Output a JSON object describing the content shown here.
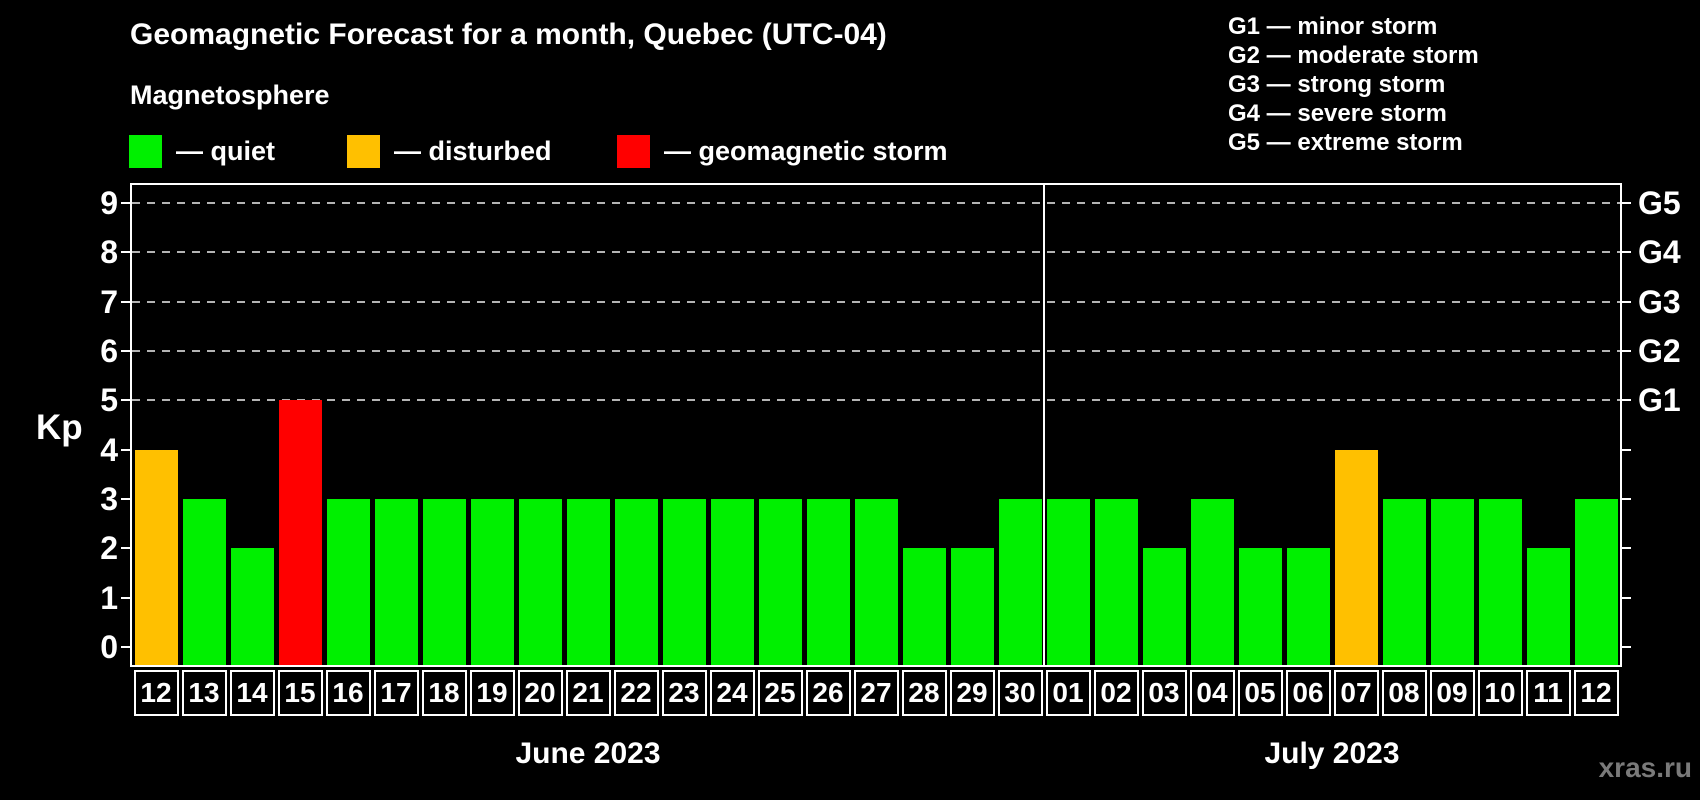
{
  "header": {
    "title": "Geomagnetic Forecast for a month, Quebec (UTC-04)",
    "subtitle": "Magnetosphere",
    "legend": [
      {
        "label": "— quiet",
        "color": "#00f000",
        "key": "quiet"
      },
      {
        "label": "— disturbed",
        "color": "#ffc000",
        "key": "disturbed"
      },
      {
        "label": "— geomagnetic storm",
        "color": "#ff0000",
        "key": "storm"
      }
    ],
    "g_legend": [
      "G1 — minor storm",
      "G2 — moderate storm",
      "G3 — strong storm",
      "G4 — severe storm",
      "G5 — extreme storm"
    ]
  },
  "watermark": "xras.ru",
  "chart_data": {
    "type": "bar",
    "title": "Geomagnetic Forecast for a month, Quebec (UTC-04)",
    "ylabel": "Kp",
    "ylim": [
      0,
      9
    ],
    "yticks": [
      0,
      1,
      2,
      3,
      4,
      5,
      6,
      7,
      8,
      9
    ],
    "gridlines_at": [
      5,
      6,
      7,
      8,
      9
    ],
    "grid": "dashed horizontal at storm levels only",
    "right_axis_labels": [
      {
        "kp": 5,
        "label": "G1"
      },
      {
        "kp": 6,
        "label": "G2"
      },
      {
        "kp": 7,
        "label": "G3"
      },
      {
        "kp": 8,
        "label": "G4"
      },
      {
        "kp": 9,
        "label": "G5"
      }
    ],
    "months": [
      {
        "label": "June 2023",
        "days": 19
      },
      {
        "label": "July 2023",
        "days": 12
      }
    ],
    "categories": [
      "12",
      "13",
      "14",
      "15",
      "16",
      "17",
      "18",
      "19",
      "20",
      "21",
      "22",
      "23",
      "24",
      "25",
      "26",
      "27",
      "28",
      "29",
      "30",
      "01",
      "02",
      "03",
      "04",
      "05",
      "06",
      "07",
      "08",
      "09",
      "10",
      "11",
      "12"
    ],
    "values": [
      4,
      3,
      2,
      5,
      3,
      3,
      3,
      3,
      3,
      3,
      3,
      3,
      3,
      3,
      3,
      3,
      2,
      2,
      3,
      3,
      3,
      2,
      3,
      2,
      2,
      4,
      3,
      3,
      3,
      2,
      3
    ],
    "statuses": [
      "disturbed",
      "quiet",
      "quiet",
      "storm",
      "quiet",
      "quiet",
      "quiet",
      "quiet",
      "quiet",
      "quiet",
      "quiet",
      "quiet",
      "quiet",
      "quiet",
      "quiet",
      "quiet",
      "quiet",
      "quiet",
      "quiet",
      "quiet",
      "quiet",
      "quiet",
      "quiet",
      "quiet",
      "quiet",
      "disturbed",
      "quiet",
      "quiet",
      "quiet",
      "quiet",
      "quiet"
    ],
    "colors": {
      "quiet": "#00f000",
      "disturbed": "#ffc000",
      "storm": "#ff0000"
    }
  }
}
